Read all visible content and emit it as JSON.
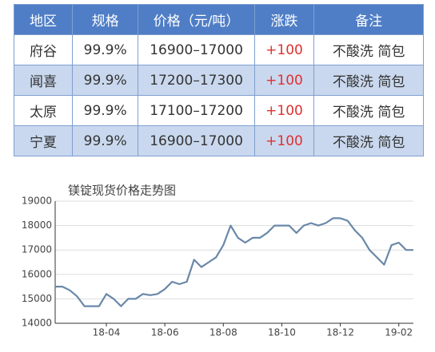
{
  "table": {
    "header": [
      "地区",
      "规格",
      "价格（元/吨）",
      "涨跌",
      "备注"
    ],
    "rows": [
      [
        "府谷",
        "99.9%",
        "16900–17000",
        "+100",
        "不酸洗  简包"
      ],
      [
        "闻喜",
        "99.9%",
        "17200–17300",
        "+100",
        "不酸洗  简包"
      ],
      [
        "太原",
        "99.9%",
        "17100–17200",
        "+100",
        "不酸洗  简包"
      ],
      [
        "宁夏",
        "99.9%",
        "16900–17000",
        "+100",
        "不酸洗  简包"
      ]
    ]
  },
  "chart_data": {
    "type": "line",
    "title": "镁锭现货价格走势图",
    "categories": [
      null,
      null,
      null,
      null,
      null,
      null,
      null,
      "18-04",
      null,
      null,
      null,
      null,
      null,
      null,
      null,
      "18-06",
      null,
      null,
      null,
      null,
      null,
      null,
      null,
      "18-08",
      null,
      null,
      null,
      null,
      null,
      null,
      null,
      "18-10",
      null,
      null,
      null,
      null,
      null,
      null,
      null,
      "18-12",
      null,
      null,
      null,
      null,
      null,
      null,
      null,
      "19-02",
      null,
      null
    ],
    "values": [
      15500,
      15500,
      15350,
      15100,
      14700,
      14700,
      14700,
      15200,
      15000,
      14700,
      15000,
      15000,
      15200,
      15150,
      15200,
      15400,
      15700,
      15600,
      15700,
      16600,
      16300,
      16500,
      16700,
      17200,
      18000,
      17500,
      17300,
      17500,
      17500,
      17700,
      18000,
      18000,
      18000,
      17700,
      18000,
      18100,
      18000,
      18100,
      18300,
      18300,
      18200,
      17800,
      17500,
      17000,
      16700,
      16400,
      17200,
      17300,
      17000,
      17000
    ],
    "color": "#6a88a8",
    "ylim": [
      14000,
      19000
    ],
    "yticks": [
      14000,
      15000,
      16000,
      17000,
      18000,
      19000
    ],
    "grid": true
  }
}
